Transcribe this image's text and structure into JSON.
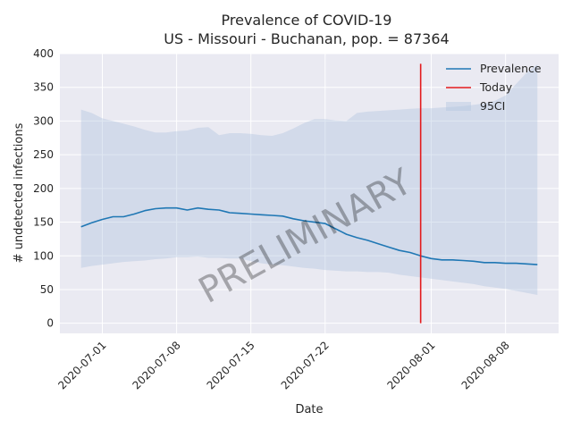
{
  "chart_data": {
    "type": "line",
    "title": "Prevalence of COVID-19",
    "subtitle": "US - Missouri - Buchanan, pop. = 87364",
    "xlabel": "Date",
    "ylabel": "# undetected infections",
    "ylim": [
      -15,
      400
    ],
    "xlim": [
      "2020-06-27",
      "2020-08-13"
    ],
    "yticks": [
      0,
      50,
      100,
      150,
      200,
      250,
      300,
      350,
      400
    ],
    "xticks": [
      "2020-07-01",
      "2020-07-08",
      "2020-07-15",
      "2020-07-22",
      "2020-08-01",
      "2020-08-08"
    ],
    "grid": true,
    "legend_position": "top-right",
    "watermark": "PRELIMINARY",
    "today": "2020-07-31",
    "today_range": [
      0,
      385
    ],
    "colors": {
      "prevalence": "#1f77b4",
      "today": "#e31a1c",
      "ci_fill": "#b0c4de",
      "background": "#eaeaf2",
      "grid": "#ffffff"
    },
    "series": [
      {
        "name": "Prevalence",
        "points": [
          [
            "2020-06-29",
            143
          ],
          [
            "2020-06-30",
            149
          ],
          [
            "2020-07-01",
            154
          ],
          [
            "2020-07-02",
            158
          ],
          [
            "2020-07-03",
            158
          ],
          [
            "2020-07-04",
            162
          ],
          [
            "2020-07-05",
            167
          ],
          [
            "2020-07-06",
            170
          ],
          [
            "2020-07-07",
            171
          ],
          [
            "2020-07-08",
            171
          ],
          [
            "2020-07-09",
            168
          ],
          [
            "2020-07-10",
            171
          ],
          [
            "2020-07-11",
            169
          ],
          [
            "2020-07-12",
            168
          ],
          [
            "2020-07-13",
            164
          ],
          [
            "2020-07-14",
            163
          ],
          [
            "2020-07-15",
            162
          ],
          [
            "2020-07-16",
            161
          ],
          [
            "2020-07-17",
            160
          ],
          [
            "2020-07-18",
            159
          ],
          [
            "2020-07-19",
            155
          ],
          [
            "2020-07-20",
            152
          ],
          [
            "2020-07-21",
            150
          ],
          [
            "2020-07-22",
            148
          ],
          [
            "2020-07-23",
            140
          ],
          [
            "2020-07-24",
            132
          ],
          [
            "2020-07-25",
            127
          ],
          [
            "2020-07-26",
            123
          ],
          [
            "2020-07-27",
            118
          ],
          [
            "2020-07-28",
            113
          ],
          [
            "2020-07-29",
            108
          ],
          [
            "2020-07-30",
            105
          ],
          [
            "2020-07-31",
            100
          ],
          [
            "2020-08-01",
            96
          ],
          [
            "2020-08-02",
            94
          ],
          [
            "2020-08-03",
            94
          ],
          [
            "2020-08-04",
            93
          ],
          [
            "2020-08-05",
            92
          ],
          [
            "2020-08-06",
            90
          ],
          [
            "2020-08-07",
            90
          ],
          [
            "2020-08-08",
            89
          ],
          [
            "2020-08-09",
            89
          ],
          [
            "2020-08-10",
            88
          ],
          [
            "2020-08-11",
            87
          ]
        ]
      },
      {
        "name": "95CI",
        "upper": [
          [
            "2020-06-29",
            317
          ],
          [
            "2020-06-30",
            312
          ],
          [
            "2020-07-01",
            304
          ],
          [
            "2020-07-02",
            300
          ],
          [
            "2020-07-03",
            296
          ],
          [
            "2020-07-04",
            292
          ],
          [
            "2020-07-05",
            287
          ],
          [
            "2020-07-06",
            283
          ],
          [
            "2020-07-07",
            283
          ],
          [
            "2020-07-08",
            285
          ],
          [
            "2020-07-09",
            286
          ],
          [
            "2020-07-10",
            290
          ],
          [
            "2020-07-11",
            291
          ],
          [
            "2020-07-12",
            279
          ],
          [
            "2020-07-13",
            282
          ],
          [
            "2020-07-14",
            282
          ],
          [
            "2020-07-15",
            281
          ],
          [
            "2020-07-16",
            279
          ],
          [
            "2020-07-17",
            278
          ],
          [
            "2020-07-18",
            282
          ],
          [
            "2020-07-19",
            289
          ],
          [
            "2020-07-20",
            297
          ],
          [
            "2020-07-21",
            303
          ],
          [
            "2020-07-22",
            303
          ],
          [
            "2020-07-23",
            301
          ],
          [
            "2020-07-24",
            300
          ],
          [
            "2020-07-25",
            312
          ],
          [
            "2020-07-26",
            314
          ],
          [
            "2020-07-27",
            315
          ],
          [
            "2020-07-28",
            316
          ],
          [
            "2020-07-29",
            317
          ],
          [
            "2020-07-30",
            318
          ],
          [
            "2020-07-31",
            319
          ],
          [
            "2020-08-01",
            319
          ],
          [
            "2020-08-02",
            320
          ],
          [
            "2020-08-03",
            321
          ],
          [
            "2020-08-04",
            322
          ],
          [
            "2020-08-05",
            324
          ],
          [
            "2020-08-06",
            326
          ],
          [
            "2020-08-07",
            330
          ],
          [
            "2020-08-08",
            338
          ],
          [
            "2020-08-09",
            355
          ],
          [
            "2020-08-10",
            372
          ],
          [
            "2020-08-11",
            384
          ]
        ],
        "lower": [
          [
            "2020-06-29",
            82
          ],
          [
            "2020-06-30",
            85
          ],
          [
            "2020-07-01",
            87
          ],
          [
            "2020-07-02",
            89
          ],
          [
            "2020-07-03",
            91
          ],
          [
            "2020-07-04",
            92
          ],
          [
            "2020-07-05",
            93
          ],
          [
            "2020-07-06",
            95
          ],
          [
            "2020-07-07",
            96
          ],
          [
            "2020-07-08",
            98
          ],
          [
            "2020-07-09",
            98
          ],
          [
            "2020-07-10",
            99
          ],
          [
            "2020-07-11",
            97
          ],
          [
            "2020-07-12",
            97
          ],
          [
            "2020-07-13",
            96
          ],
          [
            "2020-07-14",
            96
          ],
          [
            "2020-07-15",
            92
          ],
          [
            "2020-07-16",
            89
          ],
          [
            "2020-07-17",
            87
          ],
          [
            "2020-07-18",
            86
          ],
          [
            "2020-07-19",
            84
          ],
          [
            "2020-07-20",
            82
          ],
          [
            "2020-07-21",
            81
          ],
          [
            "2020-07-22",
            79
          ],
          [
            "2020-07-23",
            78
          ],
          [
            "2020-07-24",
            77
          ],
          [
            "2020-07-25",
            77
          ],
          [
            "2020-07-26",
            76
          ],
          [
            "2020-07-27",
            76
          ],
          [
            "2020-07-28",
            75
          ],
          [
            "2020-07-29",
            72
          ],
          [
            "2020-07-30",
            70
          ],
          [
            "2020-07-31",
            68
          ],
          [
            "2020-08-01",
            66
          ],
          [
            "2020-08-02",
            64
          ],
          [
            "2020-08-03",
            62
          ],
          [
            "2020-08-04",
            60
          ],
          [
            "2020-08-05",
            58
          ],
          [
            "2020-08-06",
            55
          ],
          [
            "2020-08-07",
            53
          ],
          [
            "2020-08-08",
            51
          ],
          [
            "2020-08-09",
            48
          ],
          [
            "2020-08-10",
            45
          ],
          [
            "2020-08-11",
            42
          ]
        ]
      }
    ],
    "legend": [
      "Prevalence",
      "Today",
      "95CI"
    ]
  }
}
